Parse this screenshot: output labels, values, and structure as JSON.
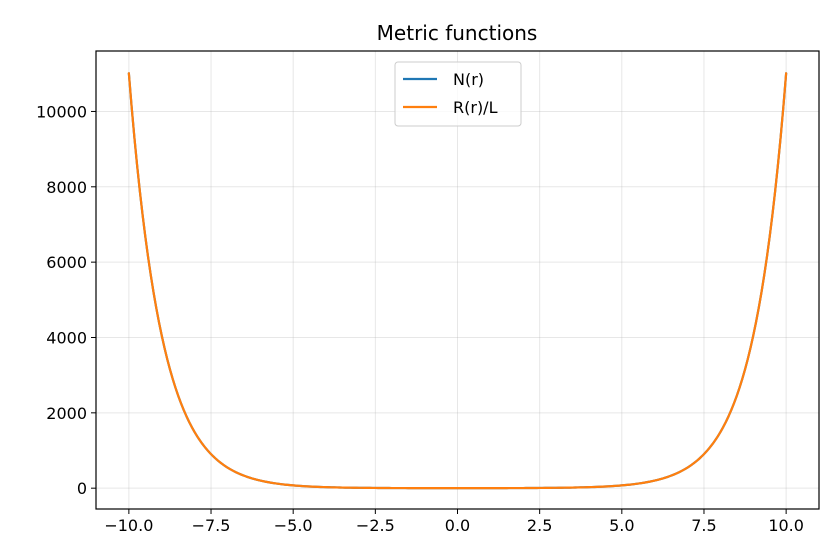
{
  "chart_data": {
    "type": "line",
    "title": "Metric functions",
    "xlabel": "",
    "ylabel": "",
    "xlim": [
      -11,
      11
    ],
    "ylim": [
      -552.6,
      11604.7
    ],
    "grid": true,
    "legend_position": "top-center",
    "x_ticks": [
      -10.0,
      -7.5,
      -5.0,
      -2.5,
      0.0,
      2.5,
      5.0,
      7.5,
      10.0
    ],
    "x_tick_labels": [
      "−10.0",
      "−7.5",
      "−5.0",
      "−2.5",
      "0.0",
      "2.5",
      "5.0",
      "7.5",
      "10.0"
    ],
    "y_ticks": [
      0,
      2000,
      4000,
      6000,
      8000,
      10000
    ],
    "y_tick_labels": [
      "0",
      "2000",
      "4000",
      "6000",
      "8000",
      "10000"
    ],
    "x": [
      -10,
      -9,
      -8,
      -7.5,
      -7,
      -6,
      -5,
      -4,
      -3,
      -2,
      -1,
      0,
      1,
      2,
      3,
      4,
      5,
      6,
      7,
      7.5,
      8,
      9,
      10
    ],
    "series": [
      {
        "name": "N(r)",
        "color": "#1f77b4",
        "values": [
          11013,
          4052,
          1490,
          904,
          548,
          202,
          74,
          27,
          10,
          3.8,
          1.5,
          1,
          1.5,
          3.8,
          10,
          27,
          74,
          202,
          548,
          904,
          1490,
          4052,
          11013
        ]
      },
      {
        "name": "R(r)/L",
        "color": "#ff7f0e",
        "values": [
          11013,
          4052,
          1490,
          904,
          548,
          202,
          74,
          27,
          10,
          3.8,
          1.5,
          1,
          1.5,
          3.8,
          10,
          27,
          74,
          202,
          548,
          904,
          1490,
          4052,
          11013
        ]
      }
    ]
  }
}
